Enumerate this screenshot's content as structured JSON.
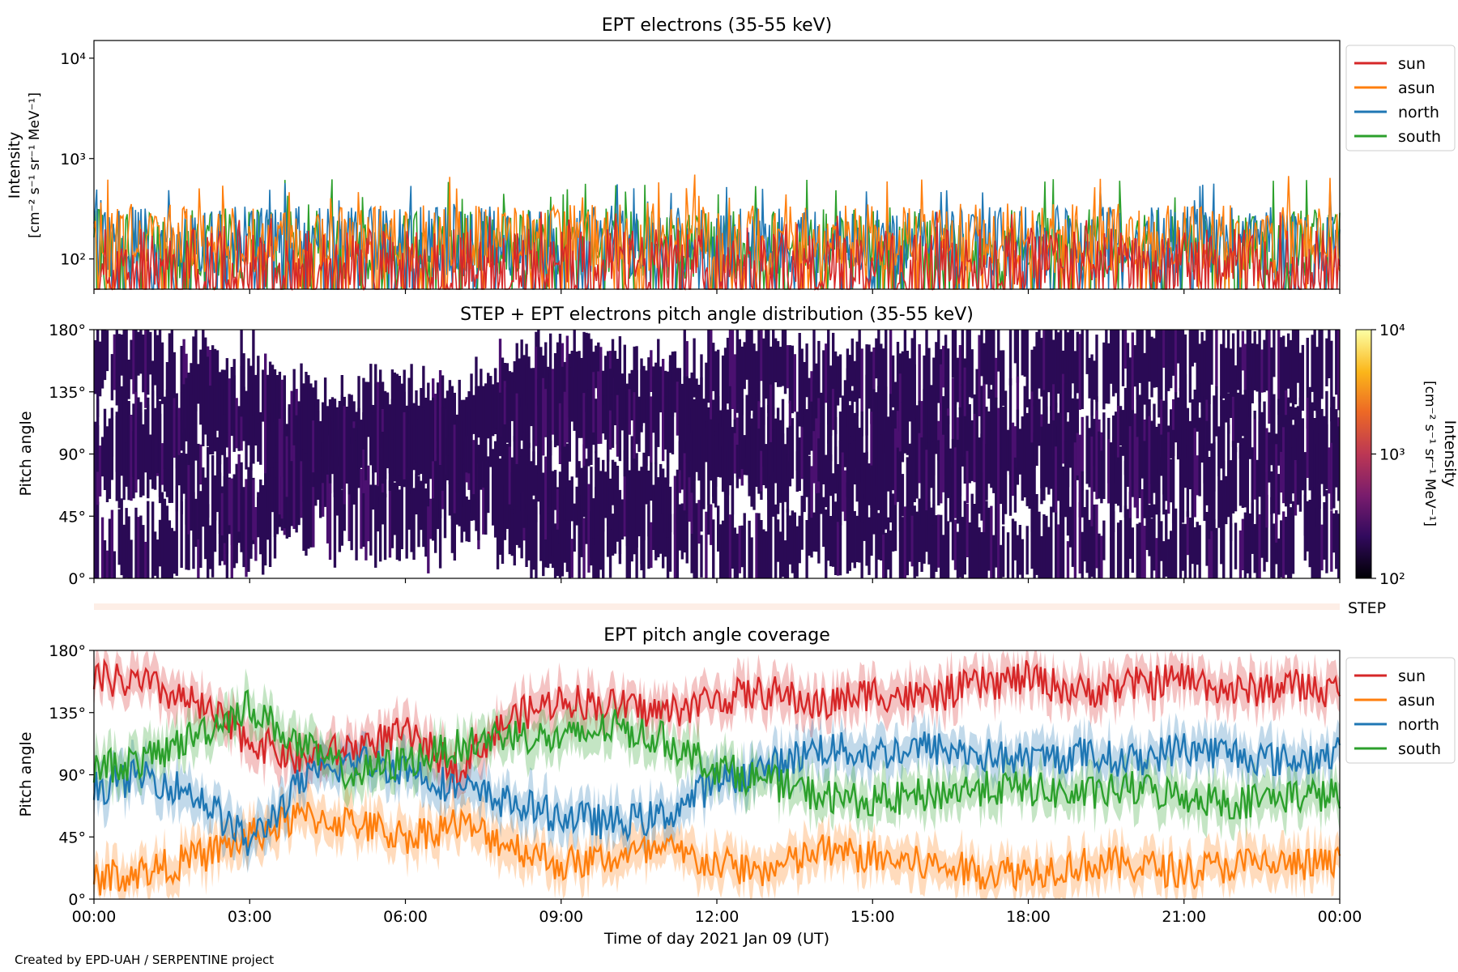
{
  "chart_data": [
    {
      "type": "line",
      "title": "EPT electrons (35-55 keV)",
      "ylabel_main": "Intensity",
      "ylabel_unit": "[cm⁻² s⁻¹ sr⁻¹ MeV⁻¹]",
      "y_scale": "log",
      "ylim": [
        50,
        15000
      ],
      "y_ticks": [
        100,
        1000,
        10000
      ],
      "y_tick_labels": [
        "10²",
        "10³",
        "10⁴"
      ],
      "xlim": [
        "2021-01-09 00:00",
        "2021-01-10 00:00"
      ],
      "legend_position": "upper-right-outside",
      "series": [
        {
          "name": "sun",
          "color": "#d62728",
          "typical": 90,
          "peak_range": [
            150,
            300
          ]
        },
        {
          "name": "asun",
          "color": "#ff7f0e",
          "typical": 160,
          "peak_range": [
            250,
            700
          ]
        },
        {
          "name": "north",
          "color": "#1f77b4",
          "typical": 150,
          "peak_range": [
            250,
            600
          ]
        },
        {
          "name": "south",
          "color": "#2ca02c",
          "typical": 140,
          "peak_range": [
            250,
            650
          ]
        }
      ]
    },
    {
      "type": "heatmap",
      "title": "STEP + EPT electrons pitch angle distribution (35-55 keV)",
      "ylabel": "Pitch angle",
      "ylim": [
        0,
        180
      ],
      "y_ticks": [
        0,
        45,
        90,
        135,
        180
      ],
      "y_tick_labels": [
        "0°",
        "45°",
        "90°",
        "135°",
        "180°"
      ],
      "xlim": [
        "2021-01-09 00:00",
        "2021-01-10 00:00"
      ],
      "colorbar": {
        "label_main": "Intensity",
        "label_unit": "[cm⁻² s⁻¹ sr⁻¹ MeV⁻¹]",
        "scale": "log",
        "range": [
          100,
          10000
        ],
        "tick_labels": [
          "10²",
          "10³",
          "10⁴"
        ],
        "colormap": "inferno",
        "colors": [
          "#000004",
          "#320a5e",
          "#781c6d",
          "#bc3754",
          "#ed6925",
          "#fbb61a",
          "#fcffa4"
        ]
      },
      "typical_intensity": 150,
      "strip_label": "STEP"
    },
    {
      "type": "line",
      "title": "EPT pitch angle coverage",
      "ylabel": "Pitch angle",
      "ylim": [
        0,
        180
      ],
      "y_ticks": [
        0,
        45,
        90,
        135,
        180
      ],
      "y_tick_labels": [
        "0°",
        "45°",
        "90°",
        "135°",
        "180°"
      ],
      "xlim": [
        "2021-01-09 00:00",
        "2021-01-10 00:00"
      ],
      "xlabel": "Time of day 2021 Jan 09 (UT)",
      "x_tick_labels": [
        "00:00",
        "03:00",
        "06:00",
        "09:00",
        "12:00",
        "15:00",
        "18:00",
        "21:00",
        "00:00"
      ],
      "legend_position": "upper-right-outside",
      "series": [
        {
          "name": "sun",
          "color": "#d62728",
          "x_hours": [
            0,
            1,
            2,
            3,
            4,
            5,
            6,
            7,
            8,
            9,
            10,
            11,
            12,
            13,
            14,
            15,
            16,
            17,
            18,
            19,
            20,
            21,
            22,
            23,
            24
          ],
          "pitch": [
            160,
            155,
            140,
            115,
            100,
            110,
            120,
            95,
            130,
            145,
            140,
            135,
            145,
            150,
            140,
            150,
            145,
            155,
            160,
            150,
            155,
            160,
            150,
            155,
            150
          ]
        },
        {
          "name": "asun",
          "color": "#ff7f0e",
          "x_hours": [
            0,
            1,
            2,
            3,
            4,
            5,
            6,
            7,
            8,
            9,
            10,
            11,
            12,
            13,
            14,
            15,
            16,
            17,
            18,
            19,
            20,
            21,
            22,
            23,
            24
          ],
          "pitch": [
            15,
            20,
            30,
            45,
            60,
            55,
            45,
            55,
            40,
            25,
            30,
            35,
            25,
            20,
            35,
            30,
            25,
            20,
            20,
            25,
            25,
            20,
            25,
            25,
            25
          ]
        },
        {
          "name": "north",
          "color": "#1f77b4",
          "x_hours": [
            0,
            1,
            2,
            3,
            4,
            5,
            6,
            7,
            8,
            9,
            10,
            11,
            12,
            13,
            14,
            15,
            16,
            17,
            18,
            19,
            20,
            21,
            22,
            23,
            24
          ],
          "pitch": [
            80,
            90,
            75,
            40,
            85,
            100,
            95,
            80,
            70,
            60,
            55,
            60,
            85,
            95,
            110,
            105,
            110,
            105,
            100,
            105,
            100,
            110,
            105,
            100,
            105
          ]
        },
        {
          "name": "south",
          "color": "#2ca02c",
          "x_hours": [
            0,
            1,
            2,
            3,
            4,
            5,
            6,
            7,
            8,
            9,
            10,
            11,
            12,
            13,
            14,
            15,
            16,
            17,
            18,
            19,
            20,
            21,
            22,
            23,
            24
          ],
          "pitch": [
            95,
            100,
            120,
            140,
            110,
            90,
            100,
            110,
            120,
            115,
            125,
            115,
            95,
            85,
            75,
            70,
            75,
            80,
            80,
            75,
            80,
            75,
            70,
            75,
            75
          ]
        }
      ]
    }
  ],
  "footer": {
    "credit": "Created by EPD-UAH / SERPENTINE project"
  }
}
